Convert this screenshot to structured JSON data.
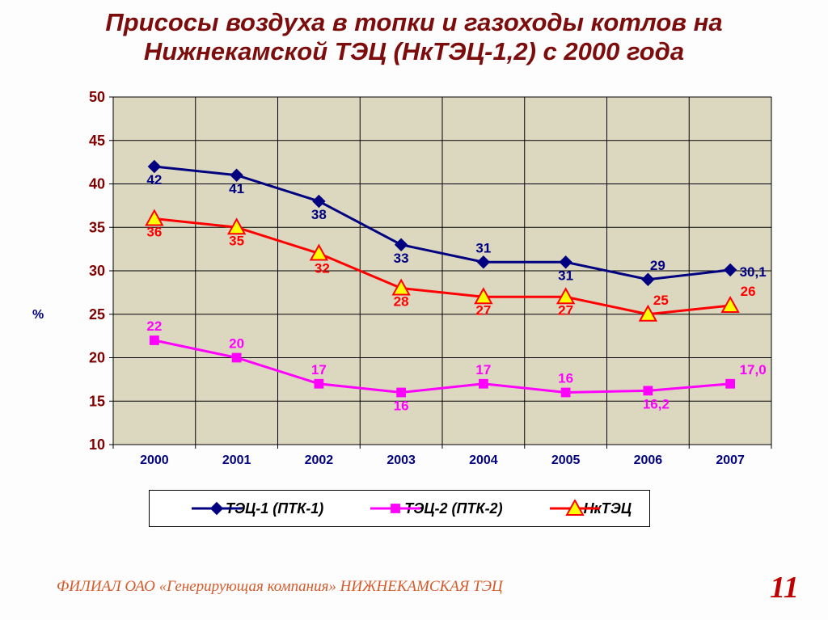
{
  "title": {
    "line1": "Присосы воздуха в топки и газоходы котлов на",
    "line2": "Нижнекамской ТЭЦ (НкТЭЦ-1,2) с 2000 года",
    "color": "#7d0c0c",
    "fontsize": 31
  },
  "chart": {
    "type": "line",
    "y_title": "%",
    "y_title_color": "#000080",
    "categories": [
      "2000",
      "2001",
      "2002",
      "2003",
      "2004",
      "2005",
      "2006",
      "2007"
    ],
    "ylim": [
      10,
      50
    ],
    "ytick_step": 5,
    "plot_bg": "#dcd8c0",
    "grid_color": "#000000",
    "grid_width": 1,
    "border_color": "#808080",
    "axis_label_color": "#000080",
    "axis_label_fontsize": 16,
    "ytick_color": "#800000",
    "ytick_fontsize": 18,
    "data_label_fontsize": 17,
    "series": [
      {
        "name": "ТЭЦ-1 (ПТК-1)",
        "color": "#000080",
        "marker": "diamond",
        "marker_fill": "#000080",
        "marker_size": 10,
        "line_width": 3,
        "values": [
          42,
          41,
          38,
          33,
          31,
          31,
          29,
          30.1
        ],
        "labels": [
          "42",
          "41",
          "38",
          "33",
          "31",
          "31",
          "29",
          "30,1"
        ],
        "label_dy": [
          22,
          22,
          22,
          22,
          -12,
          22,
          -12,
          8
        ],
        "label_dx": [
          0,
          0,
          0,
          0,
          0,
          0,
          12,
          28
        ]
      },
      {
        "name": "ТЭЦ-2 (ПТК-2)",
        "color": "#ff00ff",
        "marker": "square",
        "marker_fill": "#ff00ff",
        "marker_size": 9,
        "line_width": 3,
        "values": [
          22,
          20,
          17,
          16,
          17,
          16,
          16.2,
          17.0
        ],
        "labels": [
          "22",
          "20",
          "17",
          "16",
          "17",
          "16",
          "16,2",
          "17,0"
        ],
        "label_dy": [
          -12,
          -12,
          -12,
          22,
          -12,
          -12,
          22,
          -12
        ],
        "label_dx": [
          0,
          0,
          0,
          0,
          0,
          0,
          10,
          28
        ]
      },
      {
        "name": "НкТЭЦ",
        "color": "#ff0000",
        "marker": "triangle",
        "marker_fill": "#ffff00",
        "marker_size": 14,
        "line_width": 3,
        "values": [
          36,
          35,
          32,
          28,
          27,
          27,
          25,
          26
        ],
        "labels": [
          "36",
          "35",
          "32",
          "28",
          "27",
          "27",
          "25",
          "26"
        ],
        "label_dy": [
          22,
          22,
          24,
          22,
          22,
          22,
          -12,
          -12
        ],
        "label_dx": [
          0,
          0,
          4,
          0,
          0,
          0,
          16,
          22
        ]
      }
    ]
  },
  "legend": {
    "border": "#000000",
    "bg": "#ffffff",
    "fontsize": 18
  },
  "footer": {
    "text": "ФИЛИАЛ ОАО «Генерирующая компания» НИЖНЕКАМСКАЯ ТЭЦ",
    "color": "#d45a2a",
    "fontsize": 19,
    "page": "11",
    "page_color": "#c00000",
    "page_fontsize": 38
  }
}
